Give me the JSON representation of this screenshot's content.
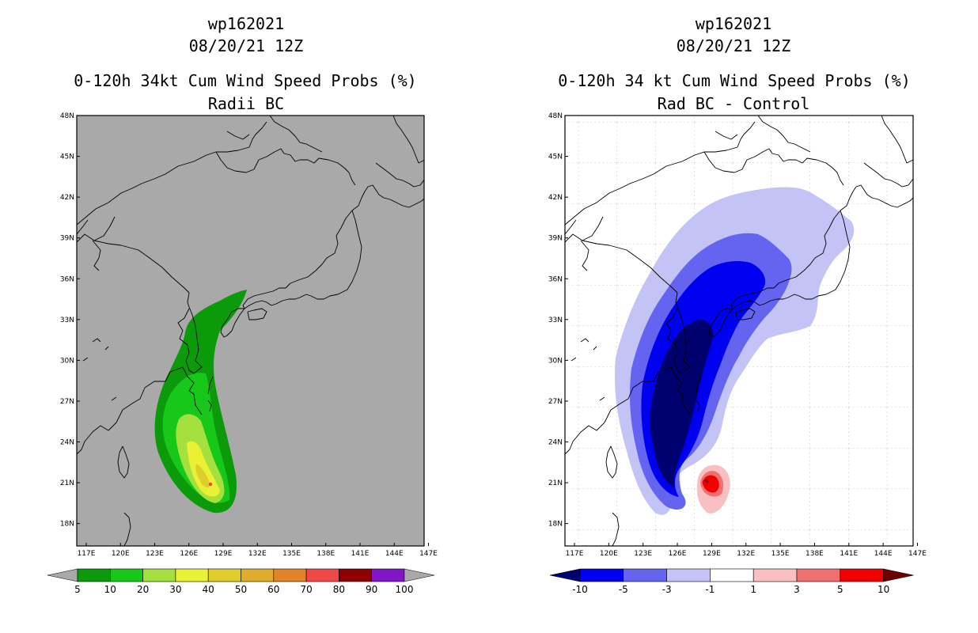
{
  "left_panel": {
    "title_id": "wp162021",
    "title_date": "08/20/21 12Z",
    "title_desc": "0-120h 34kt Cum Wind Speed Probs (%)",
    "title_sub": "Radii BC",
    "colorbar_labels": [
      "5",
      "10",
      "20",
      "30",
      "40",
      "50",
      "60",
      "70",
      "80",
      "90",
      "100"
    ],
    "colorbar_colors": [
      "#0a9a0a",
      "#17c81a",
      "#a4e13e",
      "#eaf033",
      "#dfcd2e",
      "#dfac2d",
      "#e2822b",
      "#ee4848",
      "#8f0000",
      "#8016c8"
    ]
  },
  "right_panel": {
    "title_id": "wp162021",
    "title_date": "08/20/21 12Z",
    "title_desc": "0-120h 34 kt Cum Wind Speed Probs (%)",
    "title_sub": "Rad BC - Control",
    "colorbar_labels": [
      "-10",
      "-5",
      "-3",
      "-1",
      "1",
      "3",
      "5",
      "10"
    ],
    "colorbar_colors": [
      "#0000f0",
      "#6464f0",
      "#c3c3f5",
      "#ffffff",
      "#f8c0c0",
      "#f07070",
      "#f00000"
    ]
  },
  "lat_labels": [
    "48N",
    "45N",
    "42N",
    "39N",
    "36N",
    "33N",
    "30N",
    "27N",
    "24N",
    "21N",
    "18N"
  ],
  "lon_labels": [
    "117E",
    "120E",
    "123E",
    "126E",
    "129E",
    "132E",
    "135E",
    "138E",
    "141E",
    "144E",
    "147E"
  ],
  "colors": {
    "map_bg": "#a9a9a9",
    "coast": "#000000"
  }
}
